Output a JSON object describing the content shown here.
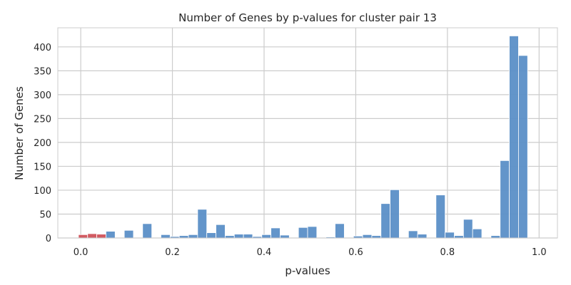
{
  "chart_data": {
    "type": "bar",
    "title": "Number of Genes by p-values for cluster pair 13",
    "xlabel": "p-values",
    "ylabel": "Number of Genes",
    "xlim": [
      -0.05,
      1.04
    ],
    "ylim": [
      0,
      440
    ],
    "xticks": [
      "0.0",
      "0.2",
      "0.4",
      "0.6",
      "0.8",
      "1.0"
    ],
    "xtick_values": [
      0,
      0.2,
      0.4,
      0.6,
      0.8,
      1.0
    ],
    "yticks": [
      "0",
      "50",
      "100",
      "150",
      "200",
      "250",
      "300",
      "350",
      "400"
    ],
    "ytick_values": [
      0,
      50,
      100,
      150,
      200,
      250,
      300,
      350,
      400
    ],
    "grid": true,
    "bin_width": 0.02,
    "colors": {
      "significant": "#d0525a",
      "default": "#5b8fc7",
      "grid": "#cccccc",
      "edge": "#ffffff"
    },
    "bins": [
      {
        "x": -0.005,
        "value": 7,
        "color": "significant"
      },
      {
        "x": 0.015,
        "value": 9,
        "color": "significant"
      },
      {
        "x": 0.035,
        "value": 8,
        "color": "significant"
      },
      {
        "x": 0.055,
        "value": 14,
        "color": "default"
      },
      {
        "x": 0.095,
        "value": 16,
        "color": "default"
      },
      {
        "x": 0.135,
        "value": 30,
        "color": "default"
      },
      {
        "x": 0.175,
        "value": 7,
        "color": "default"
      },
      {
        "x": 0.195,
        "value": 3,
        "color": "default"
      },
      {
        "x": 0.215,
        "value": 5,
        "color": "default"
      },
      {
        "x": 0.235,
        "value": 7,
        "color": "default"
      },
      {
        "x": 0.255,
        "value": 60,
        "color": "default"
      },
      {
        "x": 0.275,
        "value": 11,
        "color": "default"
      },
      {
        "x": 0.295,
        "value": 28,
        "color": "default"
      },
      {
        "x": 0.315,
        "value": 5,
        "color": "default"
      },
      {
        "x": 0.335,
        "value": 8,
        "color": "default"
      },
      {
        "x": 0.355,
        "value": 8,
        "color": "default"
      },
      {
        "x": 0.375,
        "value": 3,
        "color": "default"
      },
      {
        "x": 0.395,
        "value": 7,
        "color": "default"
      },
      {
        "x": 0.415,
        "value": 21,
        "color": "default"
      },
      {
        "x": 0.435,
        "value": 6,
        "color": "default"
      },
      {
        "x": 0.475,
        "value": 22,
        "color": "default"
      },
      {
        "x": 0.495,
        "value": 24,
        "color": "default"
      },
      {
        "x": 0.535,
        "value": 2,
        "color": "default"
      },
      {
        "x": 0.555,
        "value": 30,
        "color": "default"
      },
      {
        "x": 0.595,
        "value": 4,
        "color": "default"
      },
      {
        "x": 0.615,
        "value": 7,
        "color": "default"
      },
      {
        "x": 0.635,
        "value": 5,
        "color": "default"
      },
      {
        "x": 0.655,
        "value": 72,
        "color": "default"
      },
      {
        "x": 0.675,
        "value": 101,
        "color": "default"
      },
      {
        "x": 0.715,
        "value": 15,
        "color": "default"
      },
      {
        "x": 0.735,
        "value": 8,
        "color": "default"
      },
      {
        "x": 0.775,
        "value": 90,
        "color": "default"
      },
      {
        "x": 0.795,
        "value": 12,
        "color": "default"
      },
      {
        "x": 0.815,
        "value": 5,
        "color": "default"
      },
      {
        "x": 0.835,
        "value": 39,
        "color": "default"
      },
      {
        "x": 0.855,
        "value": 19,
        "color": "default"
      },
      {
        "x": 0.895,
        "value": 5,
        "color": "default"
      },
      {
        "x": 0.915,
        "value": 162,
        "color": "default"
      },
      {
        "x": 0.935,
        "value": 423,
        "color": "default"
      },
      {
        "x": 0.955,
        "value": 382,
        "color": "default"
      }
    ]
  }
}
